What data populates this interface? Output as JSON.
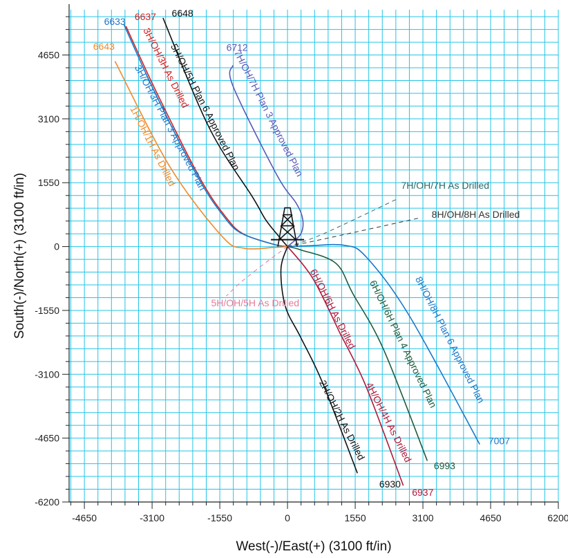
{
  "chart_data": {
    "type": "line",
    "title": "",
    "xlabel": "West(-)/East(+) (3100 ft/in)",
    "ylabel": "South(-)/North(+) (3100 ft/in)",
    "xlim": [
      -5000,
      6200
    ],
    "ylim": [
      -6200,
      5750
    ],
    "x_ticks": [
      -4650,
      -3100,
      -1550,
      0,
      1550,
      3100,
      4650,
      6200
    ],
    "y_ticks": [
      4650,
      3100,
      1550,
      0,
      -1550,
      -3100,
      -4650,
      -6200
    ],
    "grid": true,
    "rig_symbol": "drilling-rig-icon",
    "series": [
      {
        "name": "3H/OH/3H As Drilled",
        "color": "#d62020",
        "end_label": "6637",
        "points": [
          [
            0,
            0
          ],
          [
            -300,
            50
          ],
          [
            -1000,
            300
          ],
          [
            -1400,
            700
          ],
          [
            -2000,
            1650
          ],
          [
            -3000,
            3750
          ],
          [
            -3700,
            5350
          ]
        ],
        "label_pos": [
          -2850,
          4300
        ],
        "label_angle": 63,
        "end_pos": [
          -3500,
          5500
        ]
      },
      {
        "name": "3H/OH/3H Plan 3 Approved Plan",
        "color": "#1a76c8",
        "end_label": "6633",
        "points": [
          [
            0,
            0
          ],
          [
            -300,
            50
          ],
          [
            -1050,
            320
          ],
          [
            -1450,
            720
          ],
          [
            -2050,
            1680
          ],
          [
            -3050,
            3770
          ],
          [
            -3750,
            5400
          ]
        ],
        "label_pos": [
          -2750,
          2850
        ],
        "label_angle": 62,
        "end_pos": [
          -4200,
          5380
        ]
      },
      {
        "name": "5H/OH/5H Plan 6 Approved Plan",
        "color": "#111111",
        "end_label": "6648",
        "points": [
          [
            0,
            0
          ],
          [
            -200,
            250
          ],
          [
            -500,
            650
          ],
          [
            -800,
            1200
          ],
          [
            -1800,
            2900
          ],
          [
            -2850,
            5550
          ]
        ],
        "label_pos": [
          -1950,
          3350
        ],
        "label_angle": 63,
        "end_pos": [
          -2650,
          5580
        ]
      },
      {
        "name": "7H/OH/7H Plan 3 Approved Plan",
        "color": "#5858b8",
        "end_label": "6712",
        "points": [
          [
            0,
            0
          ],
          [
            300,
            300
          ],
          [
            350,
            650
          ],
          [
            200,
            1050
          ],
          [
            -250,
            1750
          ],
          [
            -1250,
            3900
          ],
          [
            -1250,
            4400
          ]
        ],
        "label_pos": [
          -500,
          3200
        ],
        "label_angle": 63,
        "end_pos": [
          -1400,
          4750
        ]
      },
      {
        "name": "1H/OH/1H As Drilled",
        "color": "#f08a2a",
        "end_label": "6643",
        "points": [
          [
            0,
            0
          ],
          [
            -300,
            -20
          ],
          [
            -1000,
            -40
          ],
          [
            -1500,
            250
          ],
          [
            -2700,
            1950
          ],
          [
            -3950,
            4500
          ]
        ],
        "label_pos": [
          -3150,
          2400
        ],
        "label_angle": 63,
        "end_pos": [
          -4450,
          4780
        ]
      },
      {
        "name": "5H/OH/5H As Drilled",
        "color": "#e87a98",
        "end_label": "",
        "points": [
          [
            0,
            0
          ],
          [
            -450,
            -350
          ],
          [
            -1050,
            -850
          ],
          [
            -1400,
            -1200
          ]
        ],
        "label_pos": [
          -1750,
          -1450
        ],
        "label_angle": 0,
        "end_pos": [
          0,
          0
        ],
        "dashed": true
      },
      {
        "name": "7H/OH/7H As Drilled",
        "color": "#2a6a6a",
        "end_label": "",
        "points": [
          [
            0,
            0
          ],
          [
            800,
            300
          ],
          [
            2500,
            1150
          ]
        ],
        "label_pos": [
          2600,
          1400
        ],
        "label_angle": 0,
        "end_pos": [
          0,
          0
        ],
        "dashed": true
      },
      {
        "name": "8H/OH/8H As Drilled",
        "color": "#333333",
        "end_label": "",
        "points": [
          [
            0,
            0
          ],
          [
            900,
            200
          ],
          [
            3050,
            700
          ]
        ],
        "label_pos": [
          3300,
          700
        ],
        "label_angle": 0,
        "end_pos": [
          0,
          0
        ],
        "dashed": true
      },
      {
        "name": "8H/OH/8H Plan 6 Approved Plan",
        "color": "#1a76c8",
        "end_label": "7007",
        "points": [
          [
            0,
            0
          ],
          [
            500,
            20
          ],
          [
            1300,
            30
          ],
          [
            1800,
            -250
          ],
          [
            2800,
            -1700
          ],
          [
            4400,
            -4800
          ]
        ],
        "label_pos": [
          3650,
          -2300
        ],
        "label_angle": 63,
        "end_pos": [
          4600,
          -4800
        ]
      },
      {
        "name": "6H/OH/6H Plan 4 Approved Plan",
        "color": "#1e5a3a",
        "end_label": "6993",
        "points": [
          [
            0,
            0
          ],
          [
            300,
            -80
          ],
          [
            1100,
            -400
          ],
          [
            1500,
            -1150
          ],
          [
            2200,
            -2500
          ],
          [
            3200,
            -5200
          ]
        ],
        "label_pos": [
          2580,
          -2400
        ],
        "label_angle": 64,
        "end_pos": [
          3350,
          -5400
        ]
      },
      {
        "name": "6H/OH/6H As Drilled",
        "color": "#b01838",
        "end_label": "",
        "points": [
          [
            0,
            0
          ],
          [
            400,
            -500
          ],
          [
            700,
            -1000
          ],
          [
            1200,
            -2100
          ]
        ],
        "label_pos": [
          970,
          -1550
        ],
        "label_angle": 63,
        "end_pos": [
          0,
          0
        ]
      },
      {
        "name": "4H/OH/4H As Drilled",
        "color": "#b01838",
        "end_label": "6937",
        "points": [
          [
            1200,
            -2100
          ],
          [
            1800,
            -3400
          ],
          [
            2650,
            -5800
          ]
        ],
        "label_pos": [
          2250,
          -4300
        ],
        "label_angle": 63,
        "end_pos": [
          2850,
          -6050
        ]
      },
      {
        "name": "2H/OH/2H As Drilled",
        "color": "#111111",
        "end_label": "6930",
        "points": [
          [
            0,
            0
          ],
          [
            -150,
            -550
          ],
          [
            -50,
            -1450
          ],
          [
            300,
            -2200
          ],
          [
            800,
            -3300
          ],
          [
            1600,
            -5500
          ]
        ],
        "label_pos": [
          1180,
          -4250
        ],
        "label_angle": 63,
        "end_pos": [
          2100,
          -5850
        ]
      }
    ]
  }
}
